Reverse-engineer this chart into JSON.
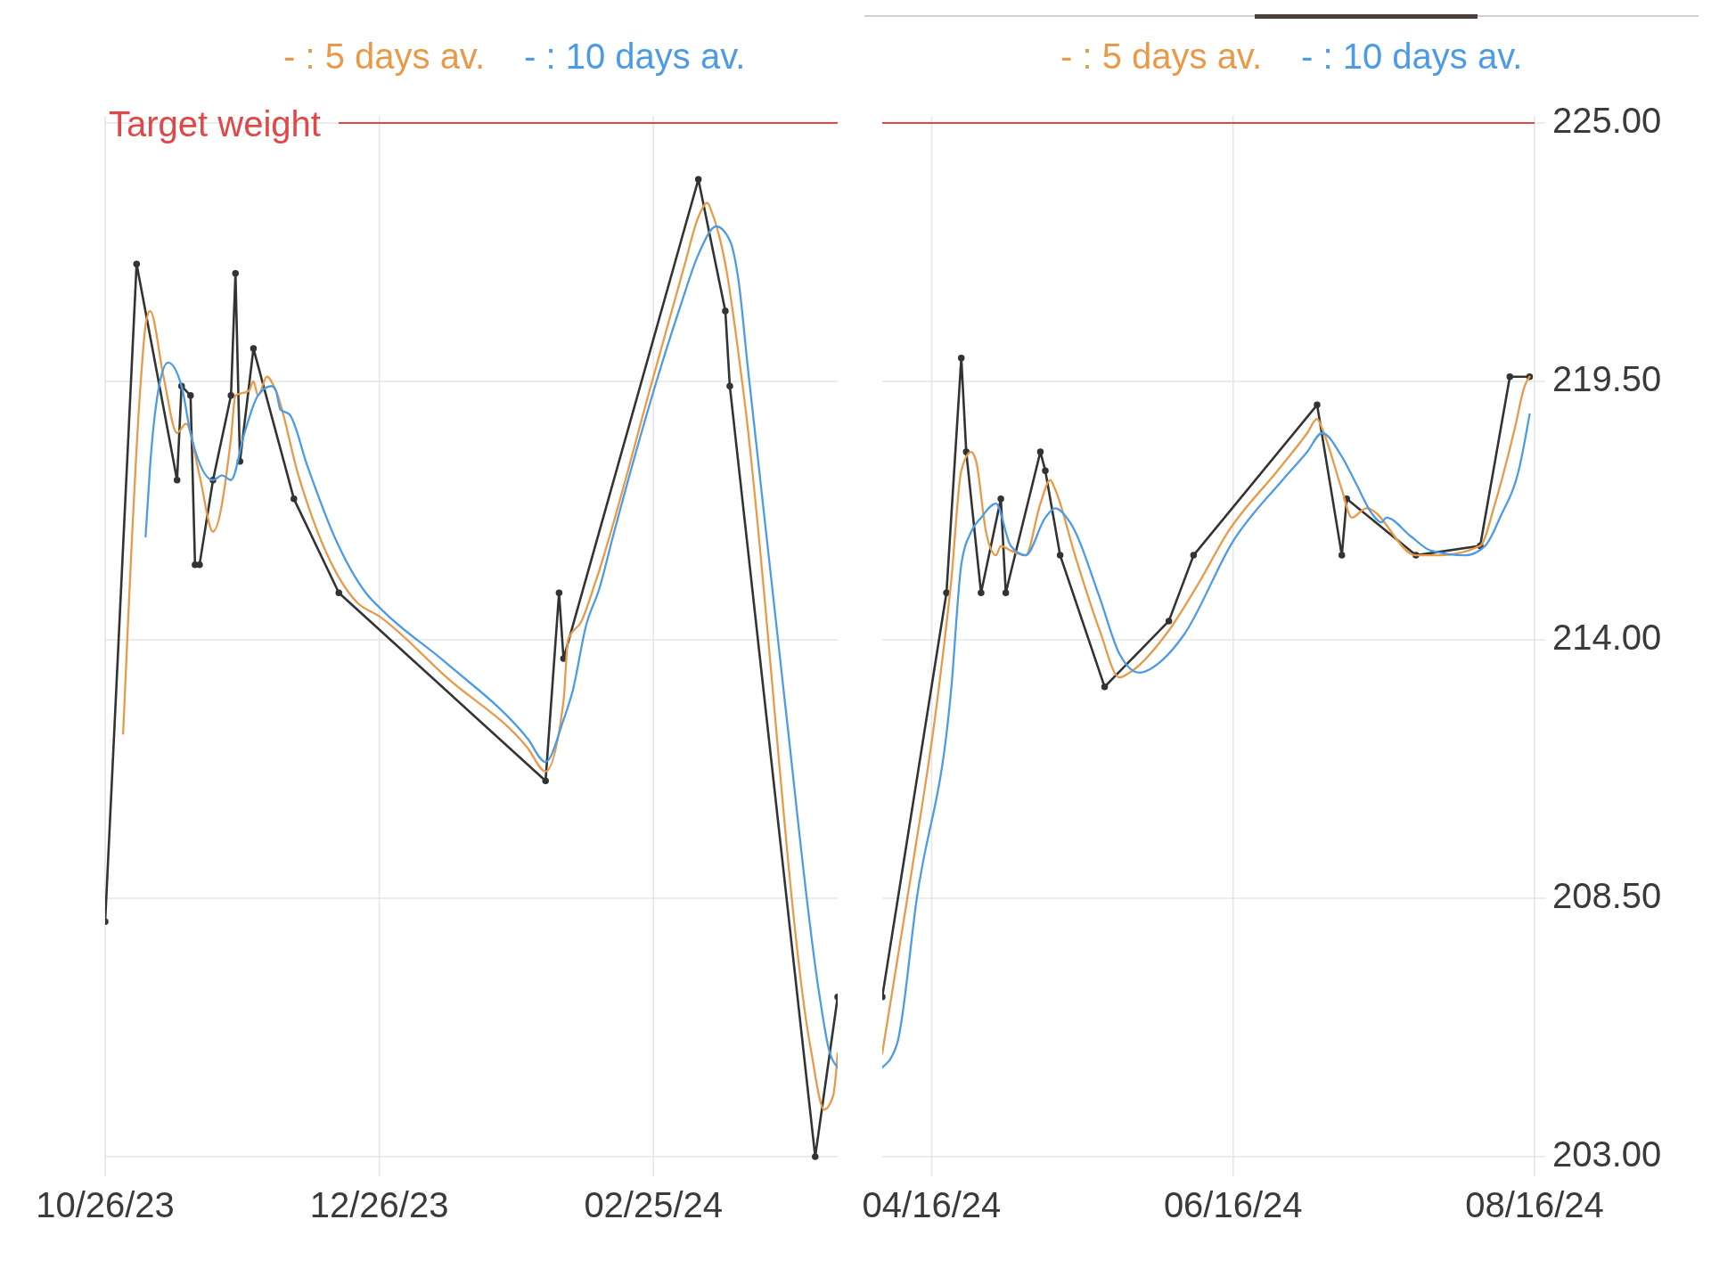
{
  "chart_data": [
    {
      "type": "line",
      "xlim": [
        "2023-10-26",
        "2024-04-06"
      ],
      "xticks": [
        {
          "value": "2023-10-26",
          "label": "10/26/23"
        },
        {
          "value": "2023-12-26",
          "label": "12/26/23"
        },
        {
          "value": "2024-02-25",
          "label": "02/25/24"
        }
      ],
      "ylim": [
        203,
        225
      ],
      "yticks": [
        203,
        208.5,
        214,
        219.5,
        225
      ],
      "tick_labels": "x",
      "grid": true,
      "legend": "top",
      "ref_lines": [
        {
          "axis": "y",
          "value": 225,
          "label": "Target weight",
          "color": "#e04848"
        }
      ],
      "series": [
        {
          "color": "#333333",
          "marker": "circle",
          "x": [
            "2023-10-26",
            "2023-11-02",
            "2023-11-11",
            "2023-11-12",
            "2023-11-14",
            "2023-11-15",
            "2023-11-16",
            "2023-11-19",
            "2023-11-23",
            "2023-11-24",
            "2023-11-25",
            "2023-11-28",
            "2023-12-07",
            "2023-12-17",
            "2024-02-01",
            "2024-02-04",
            "2024-02-05",
            "2024-03-06",
            "2024-03-12",
            "2024-03-13",
            "2024-04-01",
            "2024-04-06"
          ],
          "values": [
            208.0,
            222.0,
            217.4,
            219.4,
            219.2,
            215.6,
            215.6,
            217.4,
            219.2,
            221.8,
            217.8,
            220.2,
            217.0,
            215.0,
            211.0,
            215.0,
            213.6,
            223.8,
            221.0,
            219.4,
            203.0,
            206.4
          ]
        },
        {
          "name": "- : 5 days av.",
          "color": "#e89a48",
          "x": [
            "2023-10-30",
            "2023-11-03",
            "2023-11-04",
            "2023-11-05",
            "2023-11-08",
            "2023-11-11",
            "2023-11-13",
            "2023-11-16",
            "2023-11-19",
            "2023-11-23",
            "2023-11-24",
            "2023-11-27",
            "2023-11-28",
            "2023-11-29",
            "2023-12-01",
            "2023-12-03",
            "2023-12-08",
            "2023-12-14",
            "2023-12-21",
            "2023-12-26",
            "2024-01-10",
            "2024-01-28",
            "2024-02-01",
            "2024-02-05",
            "2024-02-06",
            "2024-02-09",
            "2024-02-12",
            "2024-02-25",
            "2024-03-03",
            "2024-03-06",
            "2024-03-08",
            "2024-03-09",
            "2024-03-12",
            "2024-03-16",
            "2024-03-31",
            "2024-04-03",
            "2024-04-05",
            "2024-04-06"
          ],
          "values": [
            212.0,
            219.6,
            220.7,
            221.0,
            219.6,
            218.4,
            218.6,
            217.5,
            216.3,
            218.3,
            219.2,
            219.3,
            219.5,
            219.2,
            219.6,
            219.3,
            217.5,
            215.9,
            214.8,
            214.5,
            213.2,
            211.7,
            211.2,
            212.7,
            214.0,
            214.4,
            215.2,
            219.6,
            222.0,
            223.0,
            223.3,
            223.1,
            222.0,
            219.3,
            205.3,
            204.0,
            204.3,
            205.2
          ]
        },
        {
          "name": "- : 10 days av.",
          "color": "#4c9be6",
          "x": [
            "2023-11-04",
            "2023-11-05",
            "2023-11-07",
            "2023-11-09",
            "2023-11-12",
            "2023-11-14",
            "2023-11-19",
            "2023-11-21",
            "2023-11-23",
            "2023-11-26",
            "2023-11-29",
            "2023-12-02",
            "2023-12-03",
            "2023-12-04",
            "2023-12-06",
            "2023-12-10",
            "2023-12-16",
            "2023-12-23",
            "2023-12-27",
            "2024-01-10",
            "2024-01-28",
            "2024-02-01",
            "2024-02-05",
            "2024-02-07",
            "2024-02-10",
            "2024-02-13",
            "2024-02-16",
            "2024-02-26",
            "2024-03-02",
            "2024-03-06",
            "2024-03-10",
            "2024-03-13",
            "2024-03-15",
            "2024-03-17",
            "2024-03-25",
            "2024-04-02",
            "2024-04-04",
            "2024-04-06"
          ],
          "values": [
            216.2,
            217.7,
            219.4,
            219.9,
            219.4,
            218.4,
            217.4,
            217.5,
            217.4,
            218.4,
            219.2,
            219.4,
            219.3,
            218.9,
            218.8,
            217.7,
            216.2,
            215.0,
            214.6,
            213.5,
            211.9,
            211.4,
            212.3,
            212.9,
            214.3,
            215.1,
            216.2,
            219.6,
            221.1,
            222.2,
            222.8,
            222.5,
            221.6,
            219.8,
            212.9,
            206.4,
            205.3,
            204.9
          ]
        }
      ]
    },
    {
      "type": "line",
      "xlim": [
        "2024-04-06",
        "2024-08-16"
      ],
      "xticks": [
        {
          "value": "2024-04-16",
          "label": "04/16/24"
        },
        {
          "value": "2024-06-16",
          "label": "06/16/24"
        },
        {
          "value": "2024-08-16",
          "label": "08/16/24"
        }
      ],
      "ylim": [
        203,
        225
      ],
      "yticks": [
        {
          "value": 203,
          "label": "203.00"
        },
        {
          "value": 208.5,
          "label": "208.50"
        },
        {
          "value": 214,
          "label": "214.00"
        },
        {
          "value": 219.5,
          "label": "219.50"
        },
        {
          "value": 225,
          "label": "225.00"
        }
      ],
      "grid": true,
      "legend": "top",
      "ref_lines": [
        {
          "axis": "y",
          "value": 225,
          "color": "#e04848"
        }
      ],
      "series": [
        {
          "color": "#333333",
          "marker": "circle",
          "x": [
            "2024-04-06",
            "2024-04-19",
            "2024-04-22",
            "2024-04-23",
            "2024-04-26",
            "2024-04-30",
            "2024-05-01",
            "2024-05-08",
            "2024-05-09",
            "2024-05-12",
            "2024-05-21",
            "2024-06-03",
            "2024-06-08",
            "2024-07-03",
            "2024-07-08",
            "2024-07-09",
            "2024-07-23",
            "2024-08-05",
            "2024-08-11",
            "2024-08-15"
          ],
          "values": [
            206.4,
            215.0,
            220.0,
            218.0,
            215.0,
            217.0,
            215.0,
            218.0,
            217.6,
            215.8,
            213.0,
            214.4,
            215.8,
            219.0,
            215.8,
            217.0,
            215.8,
            216.0,
            219.6,
            219.6
          ]
        },
        {
          "name": "- : 5 days av.",
          "color": "#e89a48",
          "x": [
            "2024-04-06",
            "2024-04-12",
            "2024-04-17",
            "2024-04-20",
            "2024-04-22",
            "2024-04-24",
            "2024-04-25",
            "2024-04-27",
            "2024-04-29",
            "2024-04-30",
            "2024-05-02",
            "2024-05-05",
            "2024-05-08",
            "2024-05-10",
            "2024-05-11",
            "2024-05-15",
            "2024-05-20",
            "2024-05-24",
            "2024-05-26",
            "2024-06-03",
            "2024-06-09",
            "2024-06-15",
            "2024-06-25",
            "2024-07-01",
            "2024-07-03",
            "2024-07-04",
            "2024-07-08",
            "2024-07-10",
            "2024-07-13",
            "2024-07-23",
            "2024-07-28",
            "2024-08-05",
            "2024-08-08",
            "2024-08-12",
            "2024-08-14",
            "2024-08-15"
          ],
          "values": [
            205.2,
            209.1,
            212.6,
            215.3,
            217.6,
            218.0,
            217.8,
            216.3,
            215.8,
            216.0,
            215.9,
            215.8,
            216.9,
            217.4,
            217.2,
            215.8,
            214.2,
            213.2,
            213.3,
            214.2,
            215.2,
            216.3,
            217.6,
            218.4,
            218.7,
            218.5,
            217.2,
            216.6,
            216.8,
            215.8,
            215.8,
            216.0,
            216.9,
            218.5,
            219.4,
            219.6
          ]
        },
        {
          "name": "- : 10 days av.",
          "color": "#4c9be6",
          "x": [
            "2024-04-06",
            "2024-04-09",
            "2024-04-13",
            "2024-04-20",
            "2024-04-22",
            "2024-04-24",
            "2024-04-26",
            "2024-04-29",
            "2024-05-02",
            "2024-05-05",
            "2024-05-09",
            "2024-05-11",
            "2024-05-14",
            "2024-05-20",
            "2024-05-24",
            "2024-05-28",
            "2024-06-02",
            "2024-06-06",
            "2024-06-16",
            "2024-06-26",
            "2024-07-01",
            "2024-07-04",
            "2024-07-08",
            "2024-07-11",
            "2024-07-14",
            "2024-07-16",
            "2024-07-17",
            "2024-07-22",
            "2024-07-26",
            "2024-08-02",
            "2024-08-06",
            "2024-08-09",
            "2024-08-13",
            "2024-08-15"
          ],
          "values": [
            204.9,
            205.4,
            208.5,
            213.0,
            215.6,
            216.3,
            216.6,
            216.9,
            216.0,
            215.8,
            216.6,
            216.8,
            216.5,
            214.9,
            213.7,
            213.3,
            213.6,
            214.1,
            216.1,
            217.4,
            218.0,
            218.4,
            217.9,
            217.3,
            216.7,
            216.5,
            216.6,
            216.2,
            215.9,
            215.8,
            216.0,
            216.6,
            217.7,
            218.8
          ]
        }
      ]
    }
  ]
}
